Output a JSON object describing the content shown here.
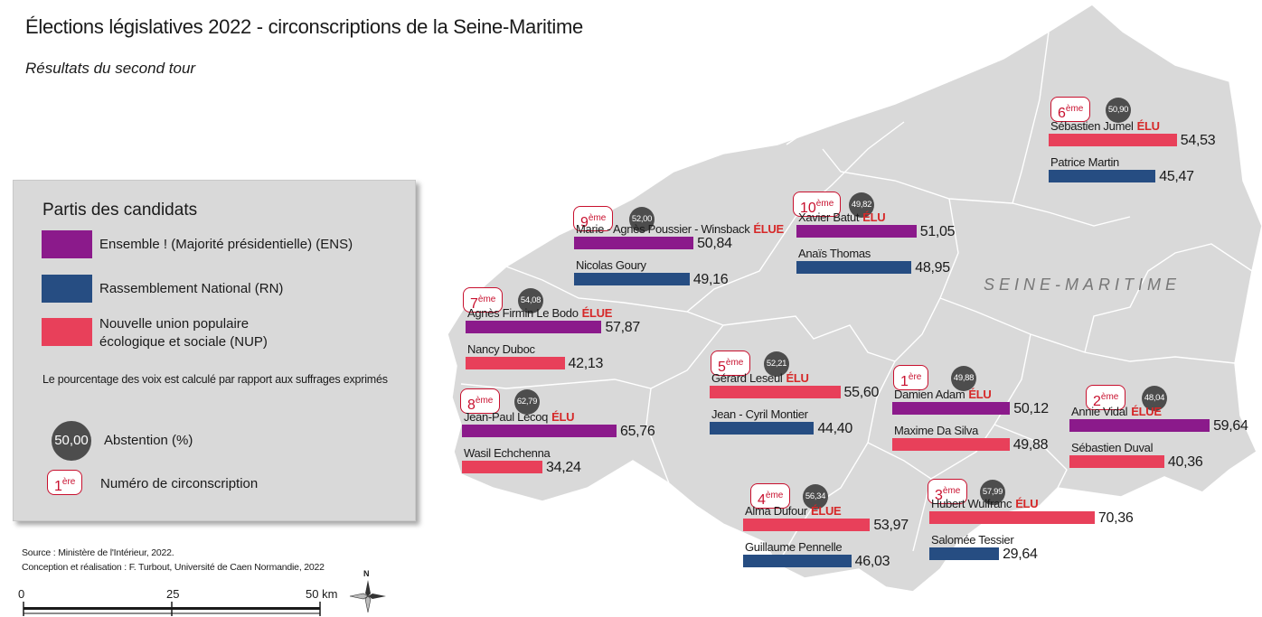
{
  "title": "Élections législatives 2022 - circonscriptions de la Seine-Maritime",
  "subtitle": "Résultats du second tour",
  "region_label": "SEINE-MARITIME",
  "elected_tag": "ÉLU",
  "elected_tag_f": "ÉLUE",
  "colors": {
    "ENS": "#8b1a8b",
    "RN": "#264d82",
    "NUP": "#e8405a",
    "territory": "#d9d9d9",
    "border": "#ffffff",
    "badge": "#c8102e",
    "abstention": "#4d4d4d"
  },
  "legend": {
    "title": "Partis des candidats",
    "parties": [
      {
        "key": "ENS",
        "label": "Ensemble ! (Majorité présidentielle) (ENS)"
      },
      {
        "key": "RN",
        "label": "Rassemblement National (RN)"
      },
      {
        "key": "NUP",
        "label_line1": "Nouvelle union populaire",
        "label_line2": "écologique et sociale (NUP)"
      }
    ],
    "note": "Le pourcentage des voix est calculé par rapport aux suffrages exprimés",
    "abstention_sample": "50,00",
    "abstention_label": "Abstention (%)",
    "circ_sample_num": "1",
    "circ_sample_sup": "ère",
    "circ_label": "Numéro de circonscription"
  },
  "circonscriptions": [
    {
      "num": "1",
      "sup": "ère",
      "abstention": "49,88",
      "candidates": [
        {
          "name": "Damien Adam",
          "party": "ENS",
          "elected": "ÉLU",
          "pct": 50.12,
          "pct_label": "50,12"
        },
        {
          "name": "Maxime Da Silva",
          "party": "NUP",
          "elected": "",
          "pct": 49.88,
          "pct_label": "49,88"
        }
      ]
    },
    {
      "num": "2",
      "sup": "ème",
      "abstention": "48,04",
      "candidates": [
        {
          "name": "Annie Vidal",
          "party": "ENS",
          "elected": "ÉLUE",
          "pct": 59.64,
          "pct_label": "59,64"
        },
        {
          "name": "Sébastien Duval",
          "party": "NUP",
          "elected": "",
          "pct": 40.36,
          "pct_label": "40,36"
        }
      ]
    },
    {
      "num": "3",
      "sup": "ème",
      "abstention": "57,99",
      "candidates": [
        {
          "name": "Hubert Wulfranc",
          "party": "NUP",
          "elected": "ÉLU",
          "pct": 70.36,
          "pct_label": "70,36"
        },
        {
          "name": "Salomée Tessier",
          "party": "RN",
          "elected": "",
          "pct": 29.64,
          "pct_label": "29,64"
        }
      ]
    },
    {
      "num": "4",
      "sup": "ème",
      "abstention": "56,34",
      "candidates": [
        {
          "name": "Alma Dufour",
          "party": "NUP",
          "elected": "ÉLUE",
          "pct": 53.97,
          "pct_label": "53,97"
        },
        {
          "name": "Guillaume Pennelle",
          "party": "RN",
          "elected": "",
          "pct": 46.03,
          "pct_label": "46,03"
        }
      ]
    },
    {
      "num": "5",
      "sup": "ème",
      "abstention": "52,21",
      "candidates": [
        {
          "name": "Gérard Leseul",
          "party": "NUP",
          "elected": "ÉLU",
          "pct": 55.6,
          "pct_label": "55,60"
        },
        {
          "name": "Jean - Cyril Montier",
          "party": "RN",
          "elected": "",
          "pct": 44.4,
          "pct_label": "44,40"
        }
      ]
    },
    {
      "num": "6",
      "sup": "ème",
      "abstention": "50,90",
      "candidates": [
        {
          "name": "Sébastien Jumel",
          "party": "NUP",
          "elected": "ÉLU",
          "pct": 54.53,
          "pct_label": "54,53"
        },
        {
          "name": "Patrice Martin",
          "party": "RN",
          "elected": "",
          "pct": 45.47,
          "pct_label": "45,47"
        }
      ]
    },
    {
      "num": "7",
      "sup": "ème",
      "abstention": "54,08",
      "candidates": [
        {
          "name": "Agnès Firmin Le Bodo",
          "party": "ENS",
          "elected": "ÉLUE",
          "pct": 57.87,
          "pct_label": "57,87"
        },
        {
          "name": "Nancy Duboc",
          "party": "NUP",
          "elected": "",
          "pct": 42.13,
          "pct_label": "42,13"
        }
      ]
    },
    {
      "num": "8",
      "sup": "ème",
      "abstention": "62,79",
      "candidates": [
        {
          "name": "Jean-Paul Lecoq",
          "party": "ENS",
          "elected": "ÉLU",
          "pct": 65.76,
          "pct_label": "65,76"
        },
        {
          "name": "Wasil Echchenna",
          "party": "NUP",
          "elected": "",
          "pct": 34.24,
          "pct_label": "34,24"
        }
      ]
    },
    {
      "num": "9",
      "sup": "ème",
      "abstention": "52,00",
      "candidates": [
        {
          "name": "Marie - Agnès Poussier - Winsback",
          "party": "ENS",
          "elected": "ÉLUE",
          "pct": 50.84,
          "pct_label": "50,84"
        },
        {
          "name": "Nicolas Goury",
          "party": "RN",
          "elected": "",
          "pct": 49.16,
          "pct_label": "49,16"
        }
      ]
    },
    {
      "num": "10",
      "sup": "ème",
      "abstention": "49,82",
      "candidates": [
        {
          "name": "Xavier Batut",
          "party": "ENS",
          "elected": "ÉLU",
          "pct": 51.05,
          "pct_label": "51,05"
        },
        {
          "name": "Anaïs Thomas",
          "party": "RN",
          "elected": "",
          "pct": 48.95,
          "pct_label": "48,95"
        }
      ]
    }
  ],
  "source_line1": "Source : Ministère de l'Intérieur, 2022.",
  "source_line2": "Conception et réalisation : F. Turbout, Université de Caen Normandie, 2022",
  "scale": {
    "ticks": [
      "0",
      "25",
      "50 km"
    ]
  },
  "north_label": "N"
}
